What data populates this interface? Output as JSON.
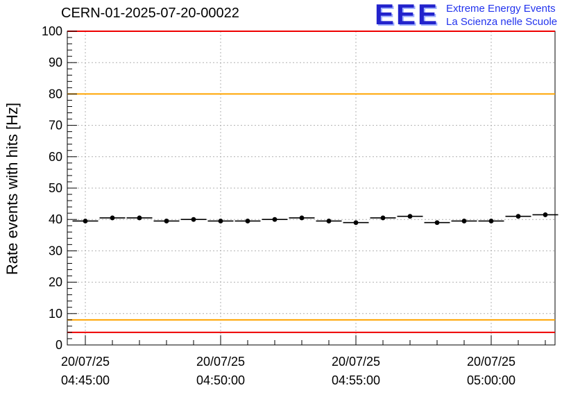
{
  "title": "CERN-01-2025-07-20-00022",
  "logo": {
    "acronym": "EEE",
    "line1": "Extreme Energy Events",
    "line2": "La Scienza nelle Scuole",
    "color": "#2222cc"
  },
  "chart_data": {
    "type": "scatter",
    "title": "CERN-01-2025-07-20-00022",
    "xlabel": "",
    "ylabel": "Rate events with hits [Hz]",
    "ylim": [
      0,
      100
    ],
    "grid": true,
    "y_major_ticks": [
      0,
      10,
      20,
      30,
      40,
      50,
      60,
      70,
      80,
      90,
      100
    ],
    "y_minor_step": 2,
    "x_tick_labels": [
      {
        "date": "20/07/25",
        "time": "04:45:00",
        "minutes": 0
      },
      {
        "date": "20/07/25",
        "time": "04:50:00",
        "minutes": 5
      },
      {
        "date": "20/07/25",
        "time": "04:55:00",
        "minutes": 10
      },
      {
        "date": "20/07/25",
        "time": "05:00:00",
        "minutes": 15
      }
    ],
    "threshold_lines": [
      {
        "name": "upper-alarm",
        "value": 100,
        "color": "#ee0000"
      },
      {
        "name": "upper-warning",
        "value": 80,
        "color": "#ffa500"
      },
      {
        "name": "lower-warning",
        "value": 8,
        "color": "#ffa500"
      },
      {
        "name": "lower-alarm",
        "value": 4,
        "color": "#ee0000"
      }
    ],
    "series": [
      {
        "name": "rate-events-with-hits",
        "marker": "filled-circle",
        "color": "#000000",
        "x_bin_halfwidth_minutes": 0.5,
        "y_error": 0.7,
        "points": [
          {
            "time": "04:45:00",
            "minutes": 0,
            "value": 39.5
          },
          {
            "time": "04:46:00",
            "minutes": 1,
            "value": 40.5
          },
          {
            "time": "04:47:00",
            "minutes": 2,
            "value": 40.5
          },
          {
            "time": "04:48:00",
            "minutes": 3,
            "value": 39.5
          },
          {
            "time": "04:49:00",
            "minutes": 4,
            "value": 40.0
          },
          {
            "time": "04:50:00",
            "minutes": 5,
            "value": 39.5
          },
          {
            "time": "04:51:00",
            "minutes": 6,
            "value": 39.5
          },
          {
            "time": "04:52:00",
            "minutes": 7,
            "value": 40.0
          },
          {
            "time": "04:53:00",
            "minutes": 8,
            "value": 40.5
          },
          {
            "time": "04:54:00",
            "minutes": 9,
            "value": 39.5
          },
          {
            "time": "04:55:00",
            "minutes": 10,
            "value": 39.0
          },
          {
            "time": "04:56:00",
            "minutes": 11,
            "value": 40.5
          },
          {
            "time": "04:57:00",
            "minutes": 12,
            "value": 41.0
          },
          {
            "time": "04:58:00",
            "minutes": 13,
            "value": 39.0
          },
          {
            "time": "04:59:00",
            "minutes": 14,
            "value": 39.5
          },
          {
            "time": "05:00:00",
            "minutes": 15,
            "value": 39.5
          },
          {
            "time": "05:01:00",
            "minutes": 16,
            "value": 41.0
          },
          {
            "time": "05:02:00",
            "minutes": 17,
            "value": 41.5
          }
        ]
      }
    ]
  }
}
